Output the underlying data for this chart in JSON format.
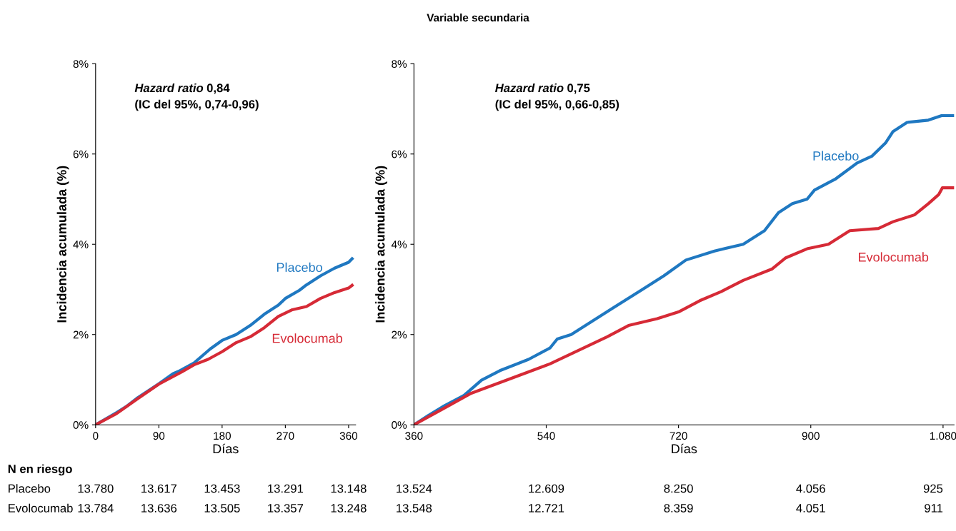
{
  "chart_data": [
    {
      "type": "line",
      "xlabel": "Días",
      "ylabel": "Incidencia acumulada (%)",
      "xlim": [
        0,
        370
      ],
      "xticks": [
        0,
        90,
        180,
        270,
        360
      ],
      "ylim": [
        0,
        8
      ],
      "yticks": [
        {
          "value": 0,
          "label": "0%"
        },
        {
          "value": 2,
          "label": "2%"
        },
        {
          "value": 4,
          "label": "4%"
        },
        {
          "value": 6,
          "label": "6%"
        },
        {
          "value": 8,
          "label": "8%"
        }
      ],
      "grid": false,
      "legend": false,
      "annotations": [
        "Hazard ratio",
        "0,84",
        "(IC del 95%, 0,74-0,96)",
        "N en riesgo",
        "Placebo",
        "13.780",
        "13.617",
        "13.453",
        "13.291",
        "13.148",
        "Evolocumab",
        "13.784",
        "13.636",
        "13.505",
        "13.357",
        "13.248"
      ],
      "series": [
        {
          "name": "Placebo",
          "color": "#1f78c1",
          "x": [
            0,
            30,
            45,
            60,
            90,
            110,
            120,
            140,
            163,
            180,
            200,
            220,
            240,
            260,
            270,
            290,
            300,
            320,
            340,
            360,
            365
          ],
          "values": [
            0,
            0.27,
            0.42,
            0.6,
            0.91,
            1.13,
            1.2,
            1.37,
            1.68,
            1.87,
            2.0,
            2.2,
            2.45,
            2.65,
            2.8,
            2.98,
            3.1,
            3.3,
            3.47,
            3.6,
            3.68
          ]
        },
        {
          "name": "Evolocumab",
          "color": "#d62a36",
          "x": [
            0,
            30,
            60,
            90,
            120,
            140,
            160,
            180,
            200,
            220,
            240,
            260,
            280,
            300,
            320,
            340,
            360,
            365
          ],
          "values": [
            0,
            0.25,
            0.58,
            0.9,
            1.15,
            1.33,
            1.45,
            1.62,
            1.82,
            1.95,
            2.15,
            2.4,
            2.55,
            2.62,
            2.8,
            2.93,
            3.03,
            3.09
          ]
        }
      ]
    },
    {
      "type": "line",
      "title": "Variable secundaria",
      "xlabel": "Días",
      "ylabel": "Incidencia acumulada (%)",
      "xlim": [
        360,
        1095
      ],
      "xticks": [
        360,
        540,
        720,
        900,
        {
          "value": 1080,
          "label": "1.080"
        }
      ],
      "ylim": [
        0,
        8
      ],
      "yticks": [
        {
          "value": 0,
          "label": "0%"
        },
        {
          "value": 2,
          "label": "2%"
        },
        {
          "value": 4,
          "label": "4%"
        },
        {
          "value": 6,
          "label": "6%"
        },
        {
          "value": 8,
          "label": "8%"
        }
      ],
      "grid": false,
      "legend": false,
      "annotations": [
        "Hazard ratio",
        "0,75",
        "(IC del 95%, 0,66-0,85)",
        "13.524",
        "12.609",
        "8.250",
        "4.056",
        "925",
        "13.548",
        "12.721",
        "8.359",
        "4.051",
        "911"
      ],
      "series": [
        {
          "name": "Placebo",
          "color": "#1f78c1",
          "x": [
            360,
            379,
            399,
            428,
            452,
            477,
            516,
            545,
            555,
            574,
            603,
            632,
            671,
            700,
            730,
            769,
            808,
            837,
            856,
            875,
            895,
            905,
            934,
            963,
            983,
            1002,
            1012,
            1031,
            1060,
            1078,
            1094
          ],
          "values": [
            0,
            0.2,
            0.4,
            0.65,
            0.99,
            1.2,
            1.45,
            1.7,
            1.9,
            2.0,
            2.3,
            2.6,
            3.0,
            3.3,
            3.65,
            3.85,
            4.0,
            4.3,
            4.7,
            4.9,
            5.0,
            5.2,
            5.45,
            5.8,
            5.95,
            6.25,
            6.5,
            6.7,
            6.75,
            6.85,
            6.85
          ]
        },
        {
          "name": "Evolocumab",
          "color": "#d62a36",
          "x": [
            360,
            399,
            438,
            496,
            545,
            584,
            623,
            652,
            691,
            720,
            749,
            778,
            808,
            847,
            866,
            895,
            924,
            953,
            992,
            1012,
            1041,
            1060,
            1074,
            1079,
            1094
          ],
          "values": [
            0,
            0.35,
            0.7,
            1.05,
            1.35,
            1.65,
            1.95,
            2.2,
            2.35,
            2.5,
            2.75,
            2.95,
            3.2,
            3.45,
            3.7,
            3.9,
            4.0,
            4.3,
            4.35,
            4.5,
            4.65,
            4.9,
            5.1,
            5.25,
            5.25
          ]
        }
      ]
    }
  ]
}
